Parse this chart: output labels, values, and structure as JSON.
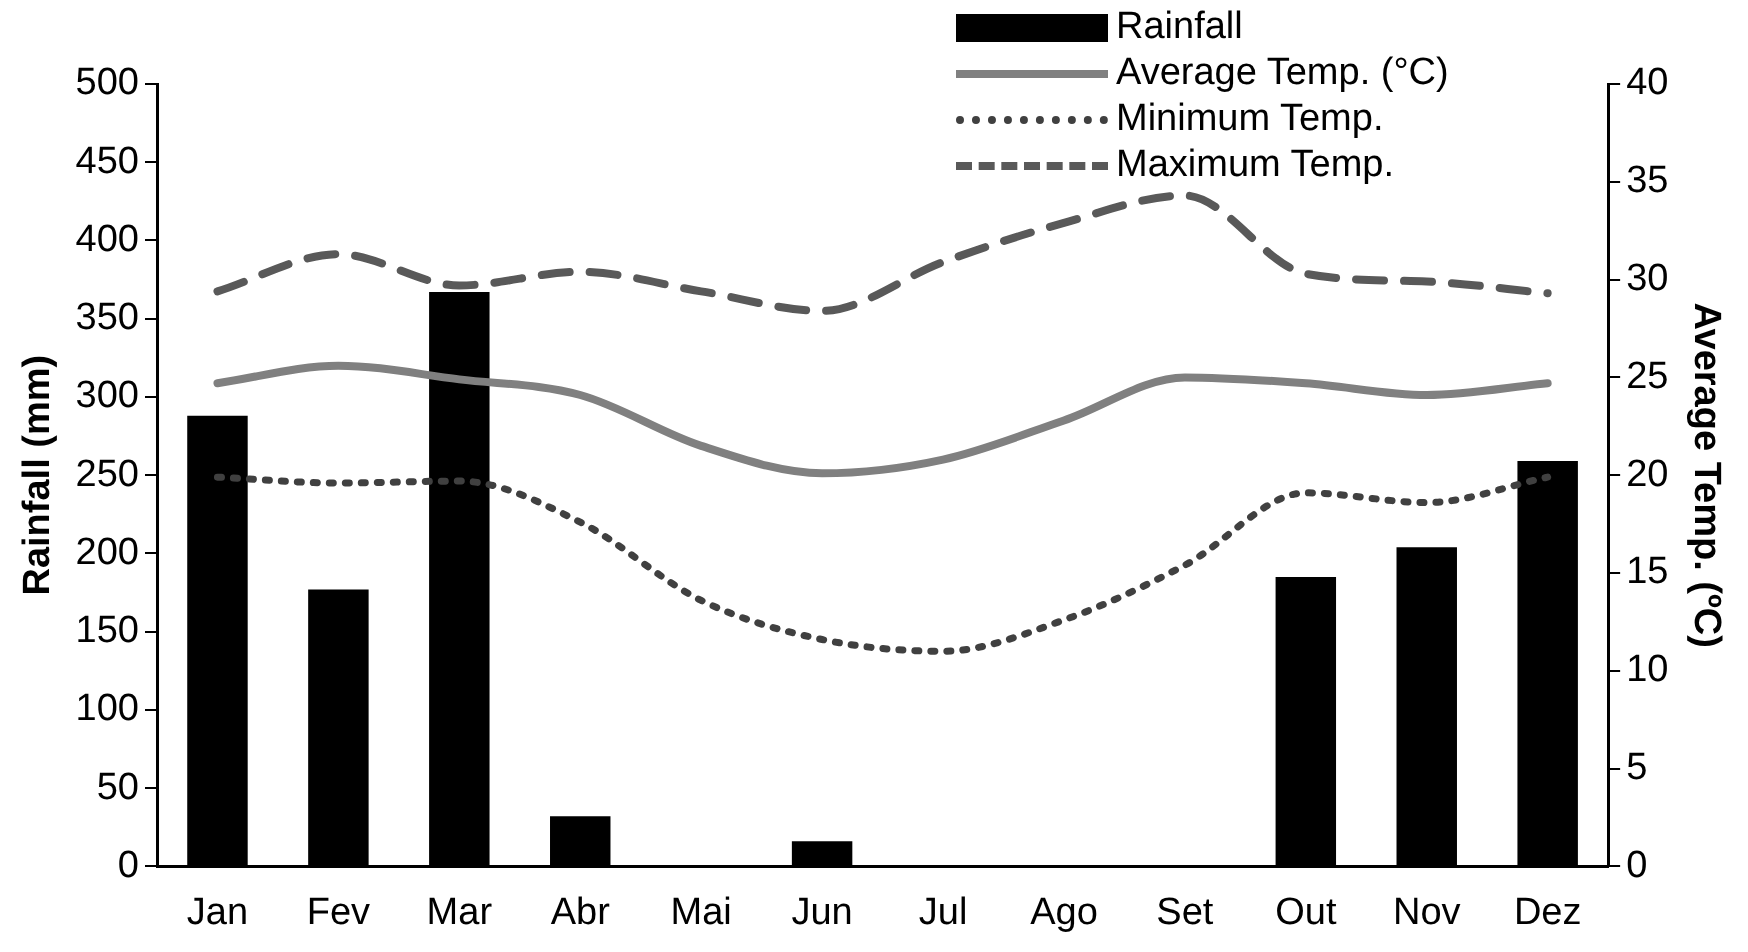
{
  "chart_data": {
    "type": "bar",
    "ylabel": "Rainfall (mm)",
    "y2label": "Average Temp. (ºC)",
    "categories": [
      "Jan",
      "Fev",
      "Mar",
      "Abr",
      "Mai",
      "Jun",
      "Jul",
      "Ago",
      "Set",
      "Out",
      "Nov",
      "Dez"
    ],
    "series": [
      {
        "name": "Rainfall",
        "color": "#000000",
        "values": [
          288,
          177,
          367,
          32,
          0,
          16,
          0,
          0,
          0,
          185,
          204,
          259
        ]
      },
      {
        "name": "Average Temp. (°C)",
        "type": "line",
        "axis": "y2",
        "color": "#808080",
        "line_style": "solid",
        "values": [
          24.7,
          25.6,
          24.9,
          24.1,
          21.5,
          20.1,
          20.8,
          22.8,
          25.0,
          24.7,
          24.1,
          24.7
        ]
      },
      {
        "name": "Minimum Temp.",
        "type": "line",
        "axis": "y2",
        "color": "#404040",
        "line_style": "dotted",
        "values": [
          19.9,
          19.6,
          19.7,
          17.6,
          13.6,
          11.6,
          11.0,
          12.6,
          15.4,
          19.1,
          18.6,
          19.9
        ]
      },
      {
        "name": "Maximum Temp.",
        "type": "line",
        "axis": "y2",
        "color": "#595959",
        "line_style": "dashed",
        "values": [
          29.4,
          31.3,
          29.7,
          30.4,
          29.4,
          28.4,
          30.9,
          32.9,
          34.3,
          30.3,
          29.9,
          29.3
        ]
      }
    ],
    "ylim": [
      0,
      500
    ],
    "yticks": [
      0,
      50,
      100,
      150,
      200,
      250,
      300,
      350,
      400,
      450,
      500
    ],
    "y2lim": [
      0,
      40
    ],
    "y2ticks": [
      0,
      5,
      10,
      15,
      20,
      25,
      30,
      35,
      40
    ],
    "grid": false,
    "legend": "top right",
    "marker": "none"
  }
}
